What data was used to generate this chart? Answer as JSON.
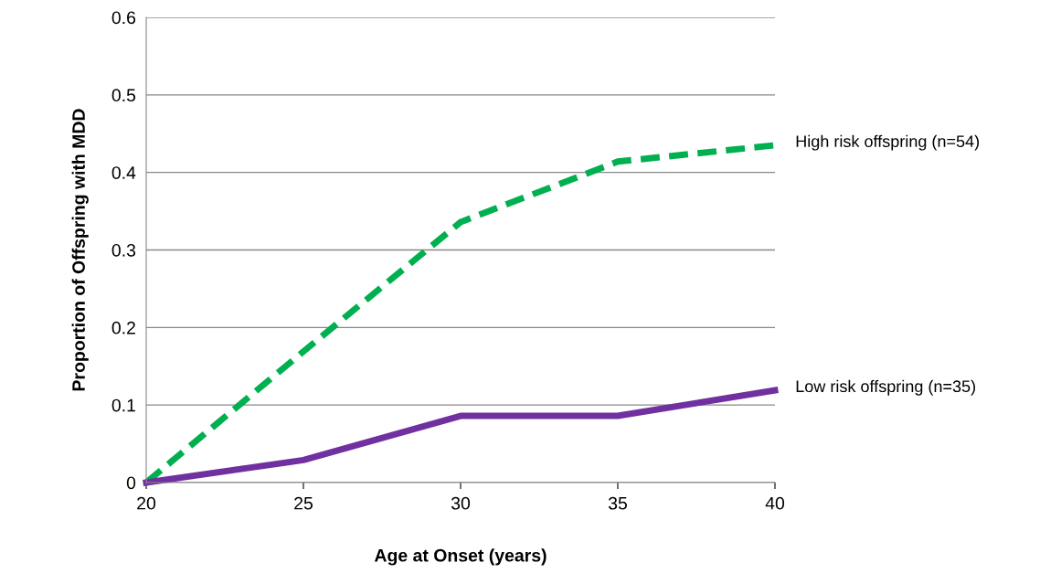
{
  "chart_data": {
    "type": "line",
    "xlabel": "Age at Onset (years)",
    "ylabel": "Proportion of Offspring with MDD",
    "x": [
      20,
      25,
      30,
      35,
      40
    ],
    "series": [
      {
        "name": "High risk offspring (n=54)",
        "color": "#00b050",
        "line_style": "dashed",
        "values": [
          0,
          0.169,
          0.336,
          0.414,
          0.435
        ]
      },
      {
        "name": "Low risk offspring (n=35)",
        "color": "#7030a0",
        "line_style": "solid",
        "values": [
          0,
          0.029,
          0.086,
          0.086,
          0.119
        ]
      }
    ],
    "xlim": [
      20,
      40
    ],
    "xticks": [
      20,
      25,
      30,
      35,
      40
    ],
    "ylim": [
      0,
      0.6
    ],
    "yticks": [
      0,
      0.1,
      0.2,
      0.3,
      0.4,
      0.5,
      0.6
    ],
    "grid": "y",
    "legend": false,
    "marker": "none"
  }
}
